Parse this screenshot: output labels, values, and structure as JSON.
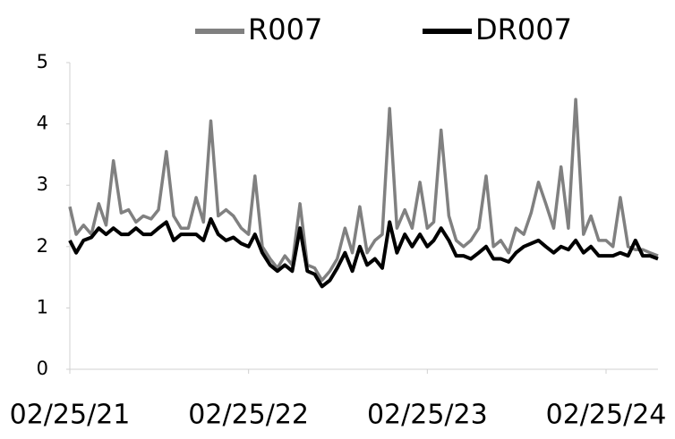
{
  "chart_data": {
    "type": "line",
    "x": [
      "02/25/21",
      "03/10/21",
      "03/25/21",
      "04/10/21",
      "04/25/21",
      "05/10/21",
      "05/25/21",
      "06/10/21",
      "06/25/21",
      "07/10/21",
      "07/25/21",
      "08/10/21",
      "08/25/21",
      "09/10/21",
      "09/25/21",
      "10/10/21",
      "10/25/21",
      "11/10/21",
      "11/25/21",
      "12/10/21",
      "12/25/21",
      "01/10/22",
      "01/25/22",
      "02/10/22",
      "02/25/22",
      "03/10/22",
      "03/25/22",
      "04/10/22",
      "04/25/22",
      "05/10/22",
      "05/25/22",
      "06/10/22",
      "06/25/22",
      "07/10/22",
      "07/25/22",
      "08/10/22",
      "08/25/22",
      "09/10/22",
      "09/25/22",
      "10/10/22",
      "10/25/22",
      "11/10/22",
      "11/25/22",
      "12/10/22",
      "12/25/22",
      "01/10/23",
      "01/25/23",
      "02/10/23",
      "02/25/23",
      "03/10/23",
      "03/25/23",
      "04/10/23",
      "04/25/23",
      "05/10/23",
      "05/25/23",
      "06/10/23",
      "06/25/23",
      "07/10/23",
      "07/25/23",
      "08/10/23",
      "08/25/23",
      "09/10/23",
      "09/25/23",
      "10/10/23",
      "10/25/23",
      "11/10/23",
      "11/25/23",
      "12/10/23",
      "12/25/23",
      "01/10/24",
      "01/25/24",
      "02/10/24",
      "02/25/24",
      "03/10/24",
      "03/25/24",
      "04/10/24",
      "04/25/24",
      "05/10/24",
      "05/25/24",
      "06/10/24"
    ],
    "series": [
      {
        "name": "R007",
        "color": "#808080",
        "values": [
          2.65,
          2.2,
          2.35,
          2.2,
          2.7,
          2.35,
          3.4,
          2.55,
          2.6,
          2.4,
          2.5,
          2.45,
          2.6,
          3.55,
          2.5,
          2.3,
          2.3,
          2.8,
          2.4,
          4.05,
          2.5,
          2.6,
          2.5,
          2.3,
          2.2,
          3.15,
          2.0,
          1.8,
          1.65,
          1.85,
          1.7,
          2.7,
          1.7,
          1.65,
          1.45,
          1.6,
          1.8,
          2.3,
          1.9,
          2.65,
          1.9,
          2.1,
          2.2,
          4.25,
          2.3,
          2.6,
          2.3,
          3.05,
          2.3,
          2.4,
          3.9,
          2.5,
          2.1,
          2.0,
          2.1,
          2.3,
          3.15,
          2.0,
          2.1,
          1.9,
          2.3,
          2.2,
          2.55,
          3.05,
          2.7,
          2.3,
          3.3,
          2.3,
          4.4,
          2.2,
          2.5,
          2.1,
          2.1,
          2.0,
          2.8,
          2.0,
          1.95,
          1.95,
          1.9,
          1.85
        ]
      },
      {
        "name": "DR007",
        "color": "#000000",
        "values": [
          2.1,
          1.9,
          2.1,
          2.15,
          2.3,
          2.2,
          2.3,
          2.2,
          2.2,
          2.3,
          2.2,
          2.2,
          2.3,
          2.4,
          2.1,
          2.2,
          2.2,
          2.2,
          2.1,
          2.45,
          2.2,
          2.1,
          2.15,
          2.05,
          2.0,
          2.2,
          1.9,
          1.7,
          1.6,
          1.7,
          1.6,
          2.3,
          1.6,
          1.55,
          1.35,
          1.45,
          1.65,
          1.9,
          1.6,
          2.0,
          1.7,
          1.8,
          1.65,
          2.4,
          1.9,
          2.2,
          2.0,
          2.2,
          2.0,
          2.1,
          2.3,
          2.1,
          1.85,
          1.85,
          1.8,
          1.9,
          2.0,
          1.8,
          1.8,
          1.75,
          1.9,
          2.0,
          2.05,
          2.1,
          2.0,
          1.9,
          2.0,
          1.95,
          2.1,
          1.9,
          2.0,
          1.85,
          1.85,
          1.85,
          1.9,
          1.85,
          2.1,
          1.85,
          1.85,
          1.8
        ]
      }
    ],
    "xlim": [
      "02/25/21",
      "06/10/24"
    ],
    "xticks": [
      "02/25/21",
      "02/25/22",
      "02/25/23",
      "02/25/24"
    ],
    "ylim": [
      0,
      5
    ],
    "yticks": [
      0,
      1,
      2,
      3,
      4,
      5
    ],
    "grid": false,
    "legend": "top"
  }
}
